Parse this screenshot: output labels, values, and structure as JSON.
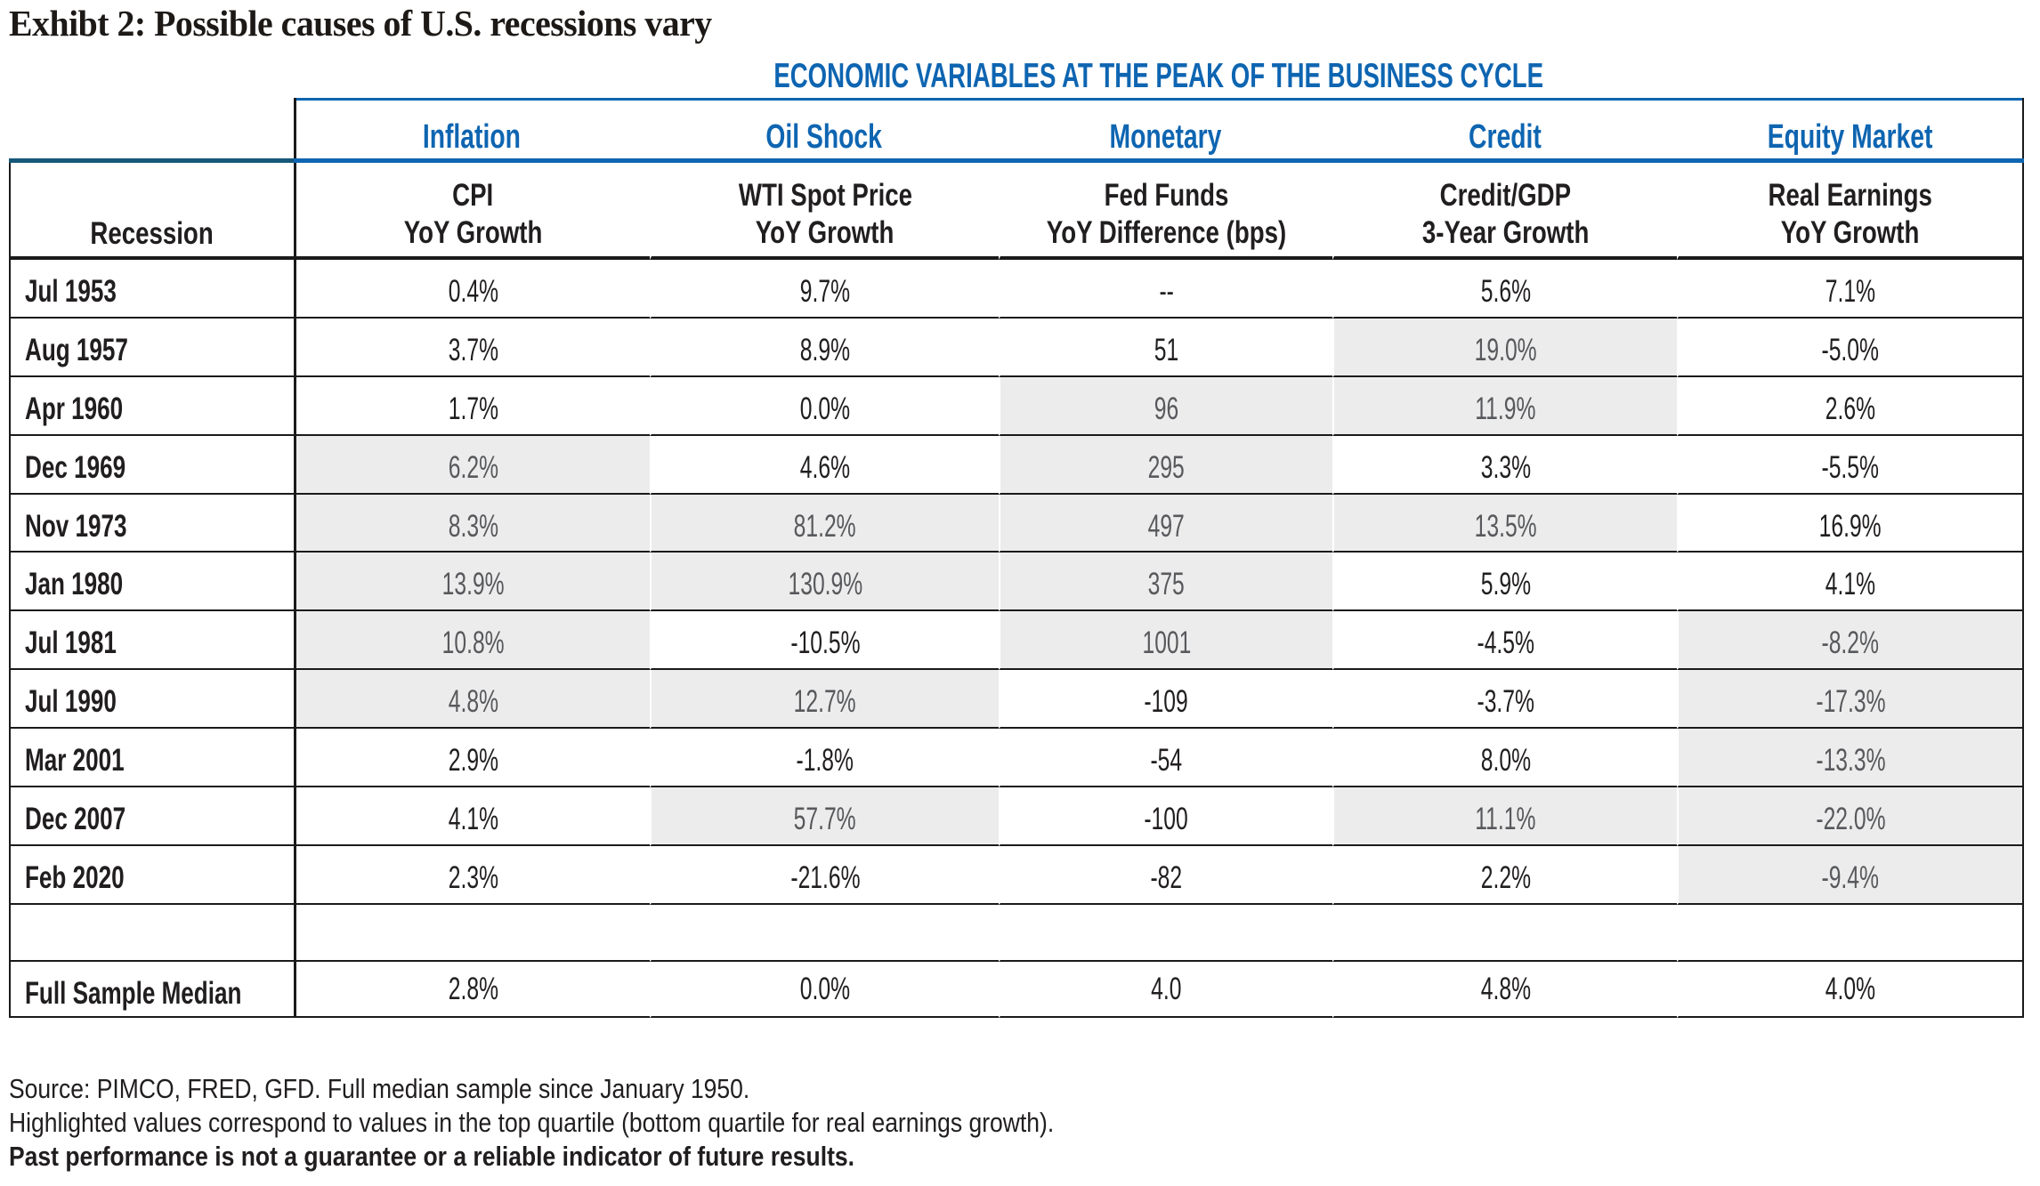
{
  "title": "Exhibt 2: Possible causes of U.S. recessions vary",
  "table": {
    "heading": "ECONOMIC VARIABLES AT THE PEAK OF THE BUSINESS CYCLE",
    "groups": [
      "Inflation",
      "Oil Shock",
      "Monetary",
      "Credit",
      "Equity Market"
    ],
    "row_header": "Recession",
    "column_headers": [
      {
        "line1": "CPI",
        "line2": "YoY Growth"
      },
      {
        "line1": "WTI Spot Price",
        "line2": "YoY Growth"
      },
      {
        "line1": "Fed Funds",
        "line2": "YoY Difference (bps)"
      },
      {
        "line1": "Credit/GDP",
        "line2": "3-Year Growth"
      },
      {
        "line1": "Real Earnings",
        "line2": "YoY Growth"
      }
    ],
    "rows": [
      {
        "label": "Jul 1953",
        "values": [
          "0.4%",
          "9.7%",
          "--",
          "5.6%",
          "7.1%"
        ],
        "hl": [
          0,
          0,
          0,
          0,
          0
        ]
      },
      {
        "label": "Aug 1957",
        "values": [
          "3.7%",
          "8.9%",
          "51",
          "19.0%",
          "-5.0%"
        ],
        "hl": [
          0,
          0,
          0,
          1,
          0
        ]
      },
      {
        "label": "Apr 1960",
        "values": [
          "1.7%",
          "0.0%",
          "96",
          "11.9%",
          "2.6%"
        ],
        "hl": [
          0,
          0,
          1,
          1,
          0
        ]
      },
      {
        "label": "Dec 1969",
        "values": [
          "6.2%",
          "4.6%",
          "295",
          "3.3%",
          "-5.5%"
        ],
        "hl": [
          1,
          0,
          1,
          0,
          0
        ]
      },
      {
        "label": "Nov 1973",
        "values": [
          "8.3%",
          "81.2%",
          "497",
          "13.5%",
          "16.9%"
        ],
        "hl": [
          1,
          1,
          1,
          1,
          0
        ]
      },
      {
        "label": "Jan 1980",
        "values": [
          "13.9%",
          "130.9%",
          "375",
          "5.9%",
          "4.1%"
        ],
        "hl": [
          1,
          1,
          1,
          0,
          0
        ]
      },
      {
        "label": "Jul 1981",
        "values": [
          "10.8%",
          "-10.5%",
          "1001",
          "-4.5%",
          "-8.2%"
        ],
        "hl": [
          1,
          0,
          1,
          0,
          1
        ]
      },
      {
        "label": "Jul 1990",
        "values": [
          "4.8%",
          "12.7%",
          "-109",
          "-3.7%",
          "-17.3%"
        ],
        "hl": [
          1,
          1,
          0,
          0,
          1
        ]
      },
      {
        "label": "Mar 2001",
        "values": [
          "2.9%",
          "-1.8%",
          "-54",
          "8.0%",
          "-13.3%"
        ],
        "hl": [
          0,
          0,
          0,
          0,
          1
        ]
      },
      {
        "label": "Dec 2007",
        "values": [
          "4.1%",
          "57.7%",
          "-100",
          "11.1%",
          "-22.0%"
        ],
        "hl": [
          0,
          1,
          0,
          1,
          1
        ]
      },
      {
        "label": "Feb 2020",
        "values": [
          "2.3%",
          "-21.6%",
          "-82",
          "2.2%",
          "-9.4%"
        ],
        "hl": [
          0,
          0,
          0,
          0,
          1
        ]
      }
    ],
    "summary_row": {
      "label": "Full Sample Median",
      "values": [
        "2.8%",
        "0.0%",
        "4.0",
        "4.8%",
        "4.0%"
      ]
    }
  },
  "footnotes": {
    "source": "Source: PIMCO, FRED, GFD. Full median sample since January 1950.",
    "highlight_note": "Highlighted values correspond to values in the top quartile (bottom quartile for real earnings growth).",
    "disclaimer": "Past performance is not a guarantee or a reliable indicator of future results."
  },
  "colors": {
    "blue": "#0E65B1",
    "navy_rule": "#155879",
    "highlight_bg": "#ECECEC",
    "highlight_text": "#58595C"
  }
}
